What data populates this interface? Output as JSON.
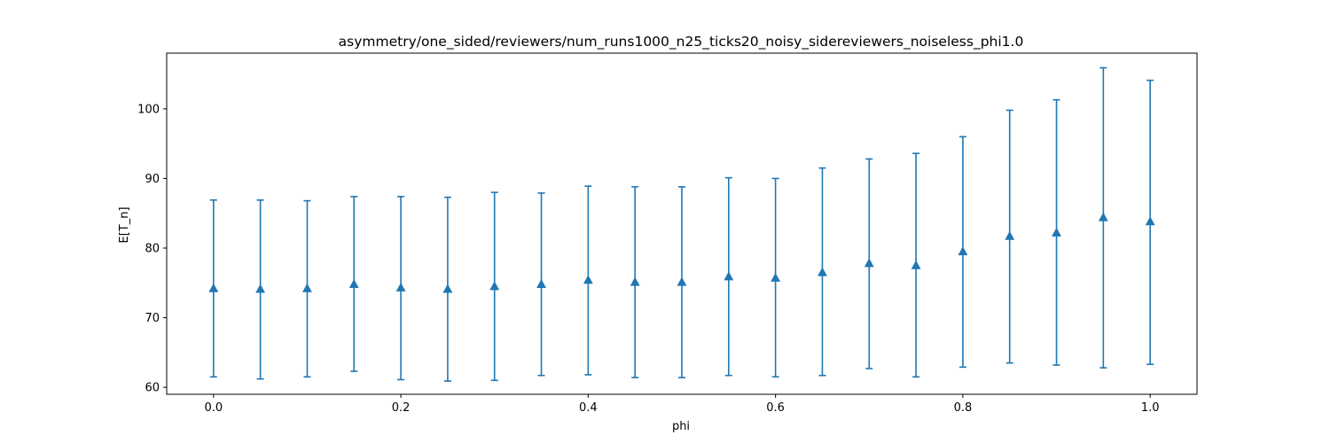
{
  "chart_data": {
    "type": "scatter",
    "title": "asymmetry/one_sided/reviewers/num_runs1000_n25_ticks20_noisy_sidereviewers_noiseless_phi1.0",
    "xlabel": "phi",
    "ylabel": "E[T_n]",
    "xlim": [
      -0.05,
      1.05
    ],
    "ylim": [
      59,
      108
    ],
    "xticks": [
      0.0,
      0.2,
      0.4,
      0.6,
      0.8,
      1.0
    ],
    "xtick_labels": [
      "0.0",
      "0.2",
      "0.4",
      "0.6",
      "0.8",
      "1.0"
    ],
    "yticks": [
      60,
      70,
      80,
      90,
      100
    ],
    "ytick_labels": [
      "60",
      "70",
      "80",
      "90",
      "100"
    ],
    "grid": false,
    "marker": "triangle-up",
    "color": "#1f77b4",
    "series": [
      {
        "x": [
          0.0,
          0.05,
          0.1,
          0.15,
          0.2,
          0.25,
          0.3,
          0.35,
          0.4,
          0.45,
          0.5,
          0.55,
          0.6,
          0.65,
          0.7,
          0.75,
          0.8,
          0.85,
          0.9,
          0.95,
          1.0
        ],
        "y": [
          74.2,
          74.1,
          74.2,
          74.8,
          74.3,
          74.1,
          74.5,
          74.8,
          75.4,
          75.1,
          75.1,
          75.9,
          75.7,
          76.5,
          77.8,
          77.5,
          79.5,
          81.7,
          82.2,
          84.4,
          83.8
        ],
        "y_low": [
          61.5,
          61.2,
          61.5,
          62.3,
          61.1,
          60.9,
          61.0,
          61.7,
          61.8,
          61.4,
          61.4,
          61.7,
          61.5,
          61.7,
          62.7,
          61.5,
          62.9,
          63.5,
          63.2,
          62.8,
          63.3
        ],
        "y_high": [
          86.9,
          86.9,
          86.8,
          87.4,
          87.4,
          87.3,
          88.0,
          87.9,
          88.9,
          88.8,
          88.8,
          90.1,
          90.0,
          91.5,
          92.8,
          93.6,
          96.0,
          99.8,
          101.3,
          105.9,
          104.1
        ]
      }
    ]
  }
}
